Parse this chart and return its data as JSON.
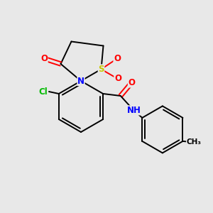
{
  "bg_color": "#e8e8e8",
  "bond_color": "#000000",
  "atom_colors": {
    "N": "#0000ff",
    "O": "#ff0000",
    "S": "#c8c800",
    "Cl": "#00bb00",
    "C": "#000000",
    "H": "#000000"
  },
  "font_size_atom": 8.5,
  "font_size_small": 7.5,
  "lw": 1.4
}
